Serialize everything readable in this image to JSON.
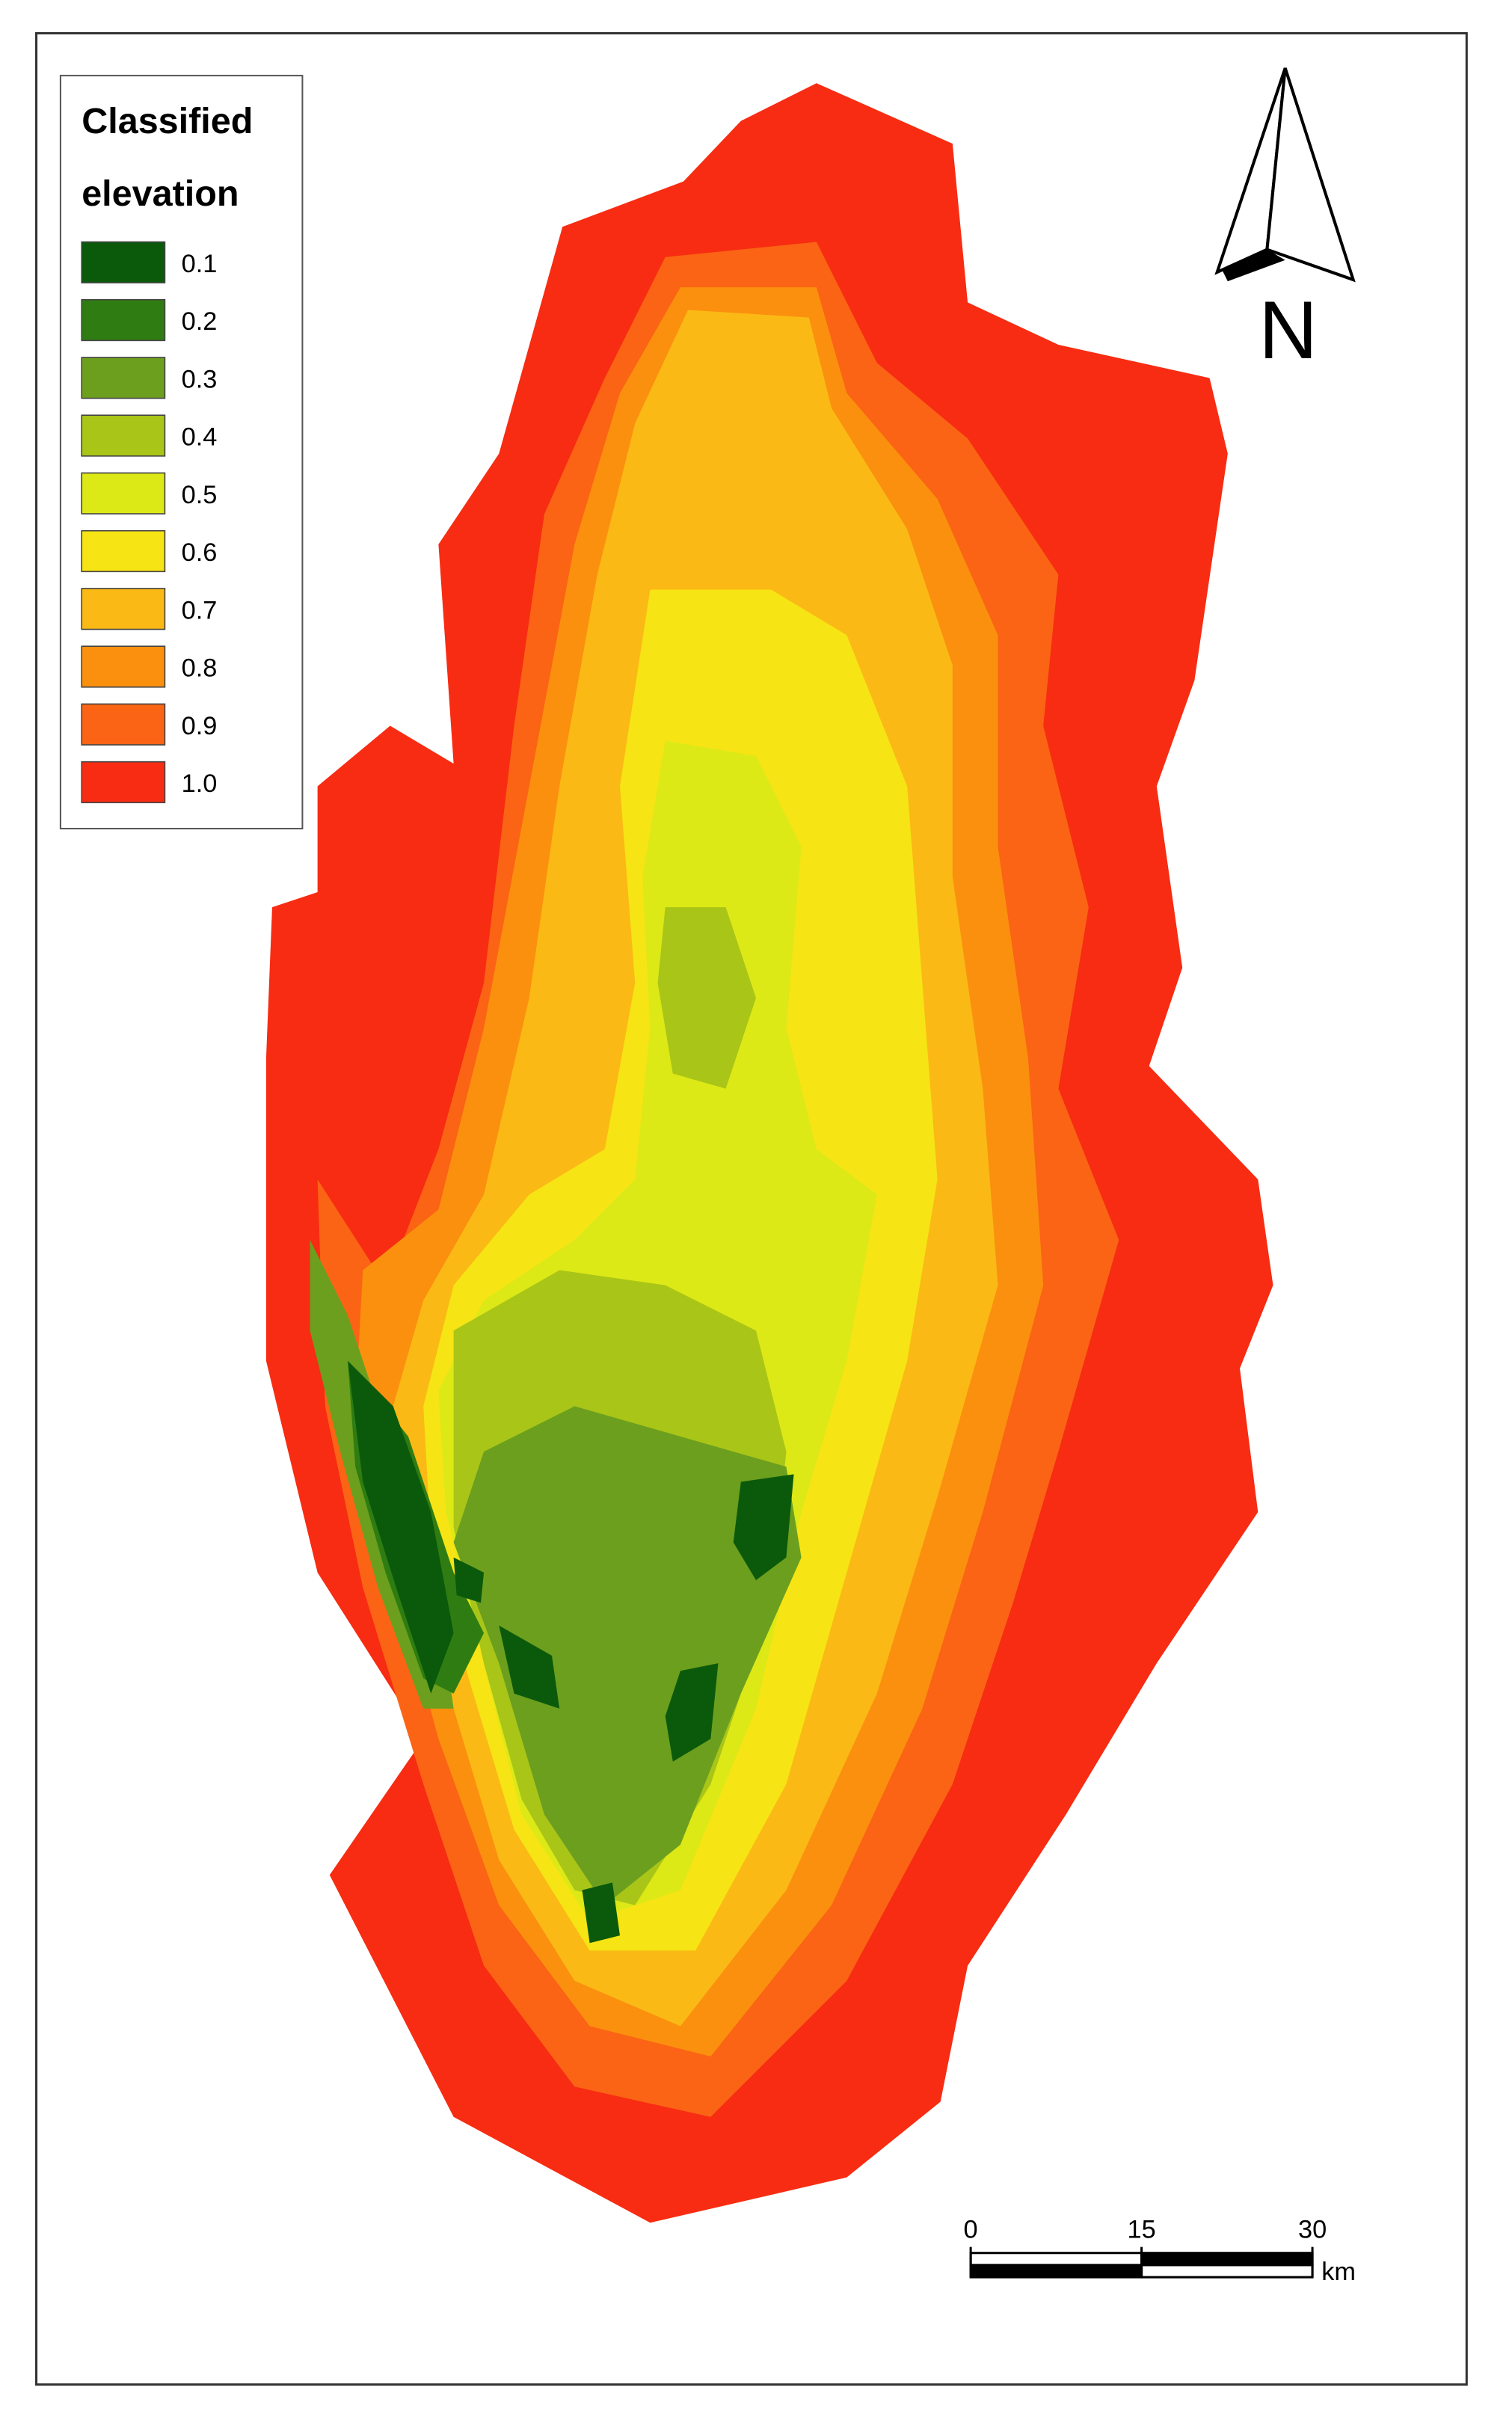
{
  "legend": {
    "title_lines": [
      "Classified",
      "elevation"
    ],
    "items": [
      {
        "label": "0.1",
        "color": "#0b5a0b"
      },
      {
        "label": "0.2",
        "color": "#2f7d12"
      },
      {
        "label": "0.3",
        "color": "#6c9f1e"
      },
      {
        "label": "0.4",
        "color": "#a9c517"
      },
      {
        "label": "0.5",
        "color": "#dde817"
      },
      {
        "label": "0.6",
        "color": "#f6e414"
      },
      {
        "label": "0.7",
        "color": "#fbb915"
      },
      {
        "label": "0.8",
        "color": "#fb900e"
      },
      {
        "label": "0.9",
        "color": "#fb6414"
      },
      {
        "label": "1.0",
        "color": "#f72c12"
      }
    ]
  },
  "north_arrow": {
    "label": "N"
  },
  "scale_bar": {
    "ticks": [
      0,
      15,
      30
    ],
    "unit": "km"
  }
}
